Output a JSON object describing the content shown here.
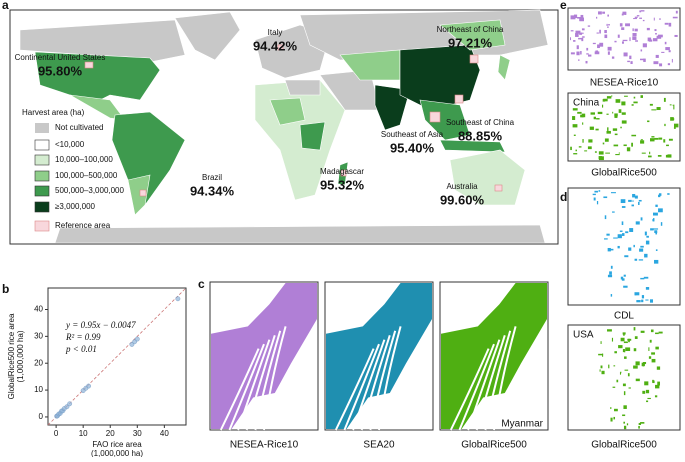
{
  "map": {
    "panel_label": "a",
    "legend_title": "Harvest area (ha)",
    "legend": [
      {
        "label": "Not cultivated",
        "color": "#c8c8c8"
      },
      {
        "label": "<10,000",
        "color": "#ffffff"
      },
      {
        "label": "10,000–100,000",
        "color": "#d4ecd0"
      },
      {
        "label": "100,000–500,000",
        "color": "#8fce8a"
      },
      {
        "label": "500,000–3,000,000",
        "color": "#3e9a4e"
      },
      {
        "label": "≥3,000,000",
        "color": "#0a3d1c"
      },
      {
        "label": "Reference area",
        "color": "#f8d7dc"
      }
    ],
    "regions": [
      {
        "name": "Continental United States",
        "accuracy": "95.80%"
      },
      {
        "name": "Italy",
        "accuracy": "94.42%"
      },
      {
        "name": "Northeast of China",
        "accuracy": "97.21%"
      },
      {
        "name": "Southeast of China",
        "accuracy": "88.85%"
      },
      {
        "name": "Southeast of Asia",
        "accuracy": "95.40%"
      },
      {
        "name": "Madagascar",
        "accuracy": "95.32%"
      },
      {
        "name": "Brazil",
        "accuracy": "94.34%"
      },
      {
        "name": "Australia",
        "accuracy": "99.60%"
      }
    ]
  },
  "chart_data": {
    "type": "scatter",
    "panel_label": "b",
    "x_label": "FAO rice area\n(1,000,000 ha)",
    "y_label": "GlobalRice500 rice area\n(1,000,000 ha)",
    "annotations": [
      "y = 0.95x − 0.0047",
      "R² = 0.99",
      "p < 0.01"
    ],
    "x": [
      0.2,
      0.5,
      1,
      1.5,
      2,
      2.5,
      3,
      4,
      5,
      10,
      11,
      12,
      28,
      29,
      30,
      45
    ],
    "values": [
      0.3,
      0.4,
      1.1,
      1.3,
      2.2,
      2.3,
      3.1,
      3.8,
      4.9,
      9.8,
      10.7,
      11.5,
      27,
      28,
      29,
      44
    ],
    "color": "#8fb3d9",
    "xlim": [
      -3,
      48
    ],
    "ylim": [
      -3,
      48
    ],
    "xticks": [
      0,
      10,
      20,
      30,
      40
    ],
    "yticks": [
      0,
      10,
      20,
      30,
      40
    ]
  },
  "comparison": {
    "panel_label": "c",
    "region": "Myanmar",
    "images": [
      "NESEA-Rice10",
      "SEA20",
      "GlobalRice500"
    ]
  },
  "usa": {
    "panel_label": "d",
    "region": "USA",
    "images": [
      "CDL",
      "GlobalRice500"
    ]
  },
  "china": {
    "panel_label": "e",
    "region": "China",
    "images": [
      "NESEA-Rice10",
      "GlobalRice500"
    ]
  }
}
